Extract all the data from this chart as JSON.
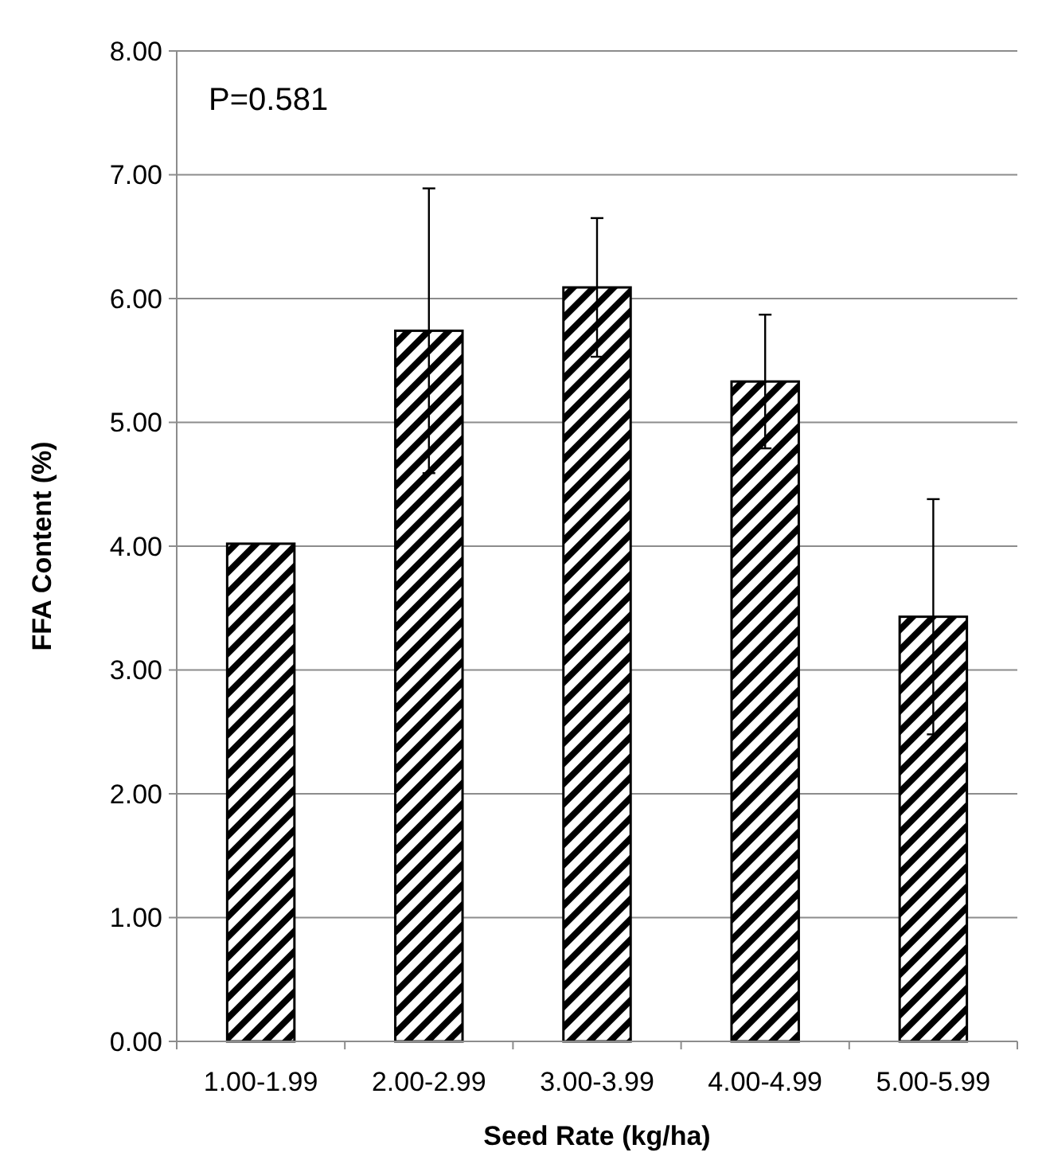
{
  "chart_data": {
    "type": "bar",
    "xlabel": "Seed Rate (kg/ha)",
    "ylabel": "FFA Content (%)",
    "categories": [
      "1.00-1.99",
      "2.00-2.99",
      "3.00-3.99",
      "4.00-4.99",
      "5.00-5.99"
    ],
    "values": [
      4.02,
      5.74,
      6.09,
      5.33,
      3.43
    ],
    "errors": [
      null,
      1.15,
      0.56,
      0.54,
      0.95
    ],
    "color": "#000000",
    "ylim": [
      0,
      8
    ],
    "yticks": [
      {
        "value": 0,
        "label": "0.00"
      },
      {
        "value": 1,
        "label": "1.00"
      },
      {
        "value": 2,
        "label": "2.00"
      },
      {
        "value": 3,
        "label": "3.00"
      },
      {
        "value": 4,
        "label": "4.00"
      },
      {
        "value": 5,
        "label": "5.00"
      },
      {
        "value": 6,
        "label": "6.00"
      },
      {
        "value": 7,
        "label": "7.00"
      },
      {
        "value": 8,
        "label": "8.00"
      }
    ],
    "grid": "y",
    "annotations": [
      "P=0.581"
    ]
  }
}
